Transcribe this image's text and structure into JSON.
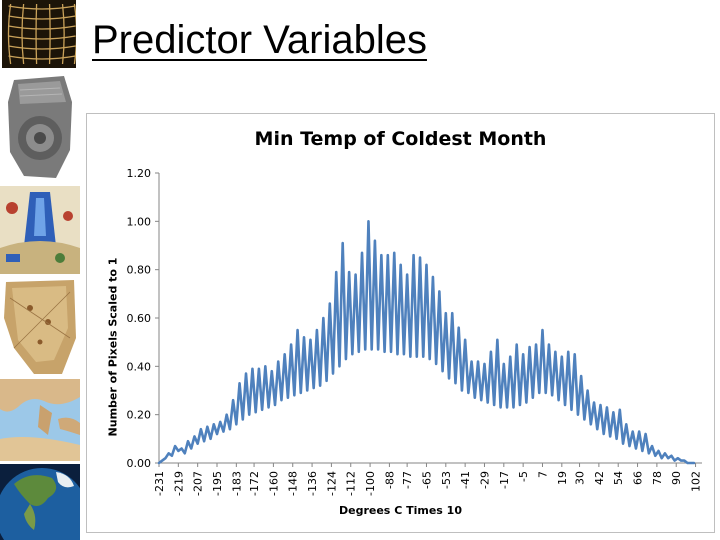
{
  "slide": {
    "title": "Predictor Variables"
  },
  "sidebar": {
    "thumbnails": [
      {
        "icon": "grid-map-icon"
      },
      {
        "icon": "clay-tablet-map-icon"
      },
      {
        "icon": "medieval-map-icon"
      },
      {
        "icon": "parchment-map-icon"
      },
      {
        "icon": "mediterranean-map-icon"
      },
      {
        "icon": "globe-satellite-icon"
      }
    ]
  },
  "colors": {
    "series": "#4f81bd",
    "axis": "#868686"
  },
  "chart_data": {
    "type": "line",
    "title": "Min Temp of Coldest Month",
    "xlabel": "Degrees C Times 10",
    "ylabel": "Number of Pixels Scaled to 1",
    "ylim": [
      0,
      1.2
    ],
    "yticks": [
      "0.00",
      "0.20",
      "0.40",
      "0.60",
      "0.80",
      "1.00",
      "1.20"
    ],
    "grid": false,
    "legend": "none",
    "x_tick_labels": [
      "-231",
      "-219",
      "-207",
      "-195",
      "-183",
      "-172",
      "-160",
      "-148",
      "-136",
      "-124",
      "-112",
      "-100",
      "-88",
      "-77",
      "-65",
      "-53",
      "-41",
      "-29",
      "-17",
      "-5",
      "7",
      "19",
      "30",
      "42",
      "54",
      "66",
      "78",
      "90",
      "102"
    ],
    "x_range": [
      -231,
      106
    ],
    "x_step": 2,
    "values": [
      0.0,
      0.01,
      0.02,
      0.04,
      0.03,
      0.07,
      0.05,
      0.06,
      0.04,
      0.09,
      0.06,
      0.11,
      0.08,
      0.14,
      0.09,
      0.15,
      0.1,
      0.16,
      0.12,
      0.17,
      0.13,
      0.2,
      0.14,
      0.26,
      0.16,
      0.33,
      0.18,
      0.37,
      0.2,
      0.39,
      0.21,
      0.39,
      0.22,
      0.4,
      0.23,
      0.38,
      0.24,
      0.42,
      0.26,
      0.45,
      0.27,
      0.49,
      0.28,
      0.55,
      0.29,
      0.52,
      0.3,
      0.51,
      0.31,
      0.55,
      0.32,
      0.6,
      0.34,
      0.66,
      0.37,
      0.79,
      0.4,
      0.91,
      0.43,
      0.79,
      0.45,
      0.78,
      0.46,
      0.87,
      0.47,
      1.0,
      0.47,
      0.92,
      0.47,
      0.86,
      0.46,
      0.86,
      0.46,
      0.87,
      0.45,
      0.82,
      0.45,
      0.78,
      0.44,
      0.86,
      0.44,
      0.85,
      0.44,
      0.82,
      0.43,
      0.77,
      0.41,
      0.71,
      0.38,
      0.62,
      0.35,
      0.62,
      0.33,
      0.56,
      0.3,
      0.51,
      0.29,
      0.42,
      0.27,
      0.42,
      0.26,
      0.41,
      0.25,
      0.46,
      0.24,
      0.51,
      0.23,
      0.41,
      0.23,
      0.44,
      0.23,
      0.49,
      0.24,
      0.45,
      0.25,
      0.48,
      0.27,
      0.49,
      0.29,
      0.55,
      0.29,
      0.49,
      0.28,
      0.46,
      0.26,
      0.44,
      0.24,
      0.46,
      0.22,
      0.45,
      0.2,
      0.36,
      0.18,
      0.3,
      0.16,
      0.25,
      0.14,
      0.24,
      0.12,
      0.23,
      0.11,
      0.21,
      0.1,
      0.22,
      0.08,
      0.16,
      0.07,
      0.13,
      0.06,
      0.13,
      0.05,
      0.12,
      0.04,
      0.07,
      0.03,
      0.05,
      0.02,
      0.04,
      0.02,
      0.03,
      0.01,
      0.02,
      0.01,
      0.01,
      0.0,
      0.0,
      0.0
    ]
  }
}
